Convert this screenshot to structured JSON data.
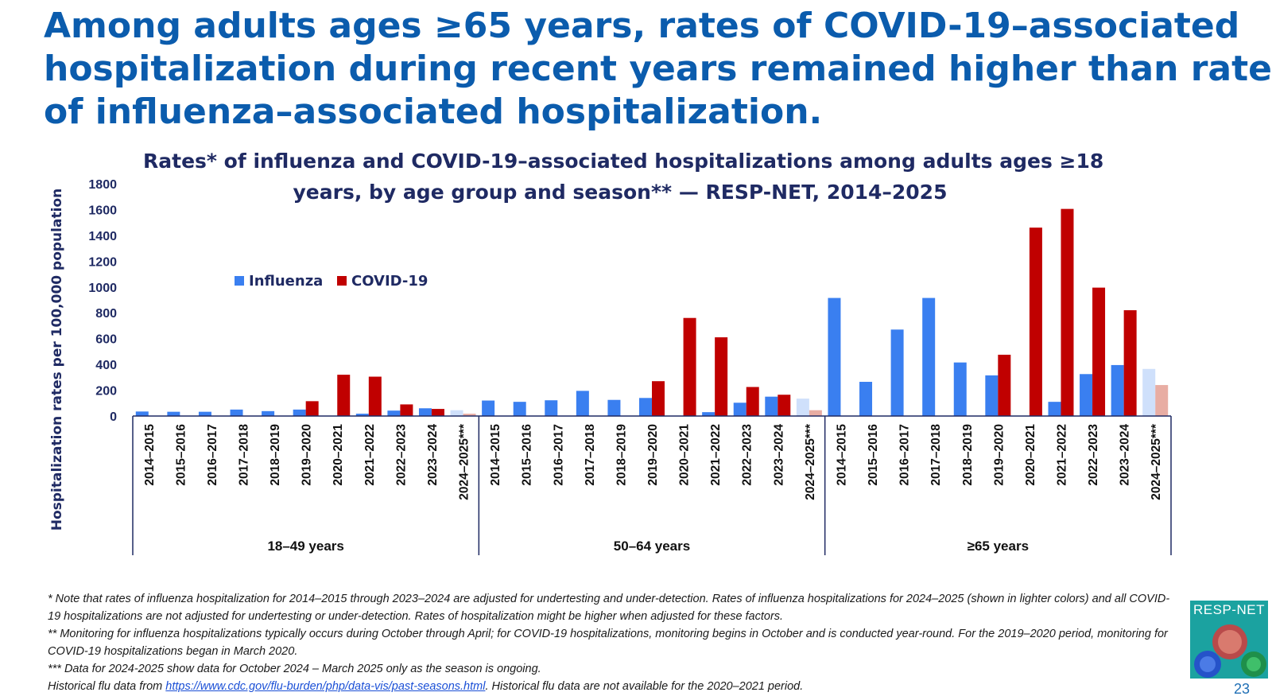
{
  "slide": {
    "title_lines": [
      "Among adults ages ≥65 years, rates of COVID-19–associated",
      "hospitalization during recent years remained higher than rates",
      "of influenza–associated hospitalization."
    ],
    "page_number": "23",
    "logo_text": "RESP-NET"
  },
  "chart_data": {
    "type": "bar",
    "title_lines": [
      "Rates* of influenza and COVID-19–associated hospitalizations among adults ages ≥18",
      "years, by age group and season** — RESP-NET, 2014–2025"
    ],
    "ylabel": "Hospitalization rates per 100,000 population",
    "xlabel": "",
    "ylim": [
      0,
      1800
    ],
    "yticks": [
      0,
      200,
      400,
      600,
      800,
      1000,
      1200,
      1400,
      1600,
      1800
    ],
    "legend_position": "top-left",
    "seasons": [
      "2014–2015",
      "2015–2016",
      "2016–2017",
      "2017–2018",
      "2018–2019",
      "2019–2020",
      "2020–2021",
      "2021–2022",
      "2022–2023",
      "2023–2024",
      "2024–2025***"
    ],
    "groups": [
      {
        "name": "18–49 years",
        "influenza": [
          35,
          33,
          33,
          50,
          38,
          50,
          null,
          18,
          42,
          60,
          45
        ],
        "covid": [
          null,
          null,
          null,
          null,
          null,
          115,
          320,
          305,
          90,
          55,
          18
        ]
      },
      {
        "name": "50–64 years",
        "influenza": [
          120,
          110,
          122,
          195,
          125,
          140,
          null,
          30,
          103,
          150,
          135
        ],
        "covid": [
          null,
          null,
          null,
          null,
          null,
          270,
          760,
          610,
          225,
          165,
          45
        ]
      },
      {
        "name": "≥65 years",
        "influenza": [
          915,
          265,
          670,
          915,
          415,
          315,
          null,
          110,
          325,
          395,
          365
        ],
        "covid": [
          null,
          null,
          null,
          null,
          null,
          475,
          1460,
          1605,
          995,
          820,
          240
        ]
      }
    ],
    "series": [
      {
        "name": "Influenza",
        "color": "#3a7ff0",
        "light_color": "#cfe0fb"
      },
      {
        "name": "COVID-19",
        "color": "#c00000",
        "light_color": "#e8ada3"
      }
    ],
    "note": "Last season in each group is drawn in lighter colors"
  },
  "footnotes": {
    "note1": "* Note that rates of influenza hospitalization for 2014–2015 through 2023–2024 are adjusted for undertesting and under-detection. Rates of influenza hospitalizations for 2024–2025 (shown in lighter colors) and all COVID-19 hospitalizations are not adjusted for undertesting or under-detection. Rates of hospitalization might be higher when adjusted for these factors.",
    "note2": "** Monitoring for influenza hospitalizations typically occurs during October through April; for COVID-19 hospitalizations, monitoring begins in October and is conducted year-round. For the 2019–2020 period, monitoring for COVID-19 hospitalizations began in March 2020.",
    "note3": "*** Data for 2024-2025 show data for October 2024 – March 2025 only as the season is ongoing.",
    "note4_prefix": "Historical flu data from ",
    "note4_link": "https://www.cdc.gov/flu-burden/php/data-vis/past-seasons.html",
    "note4_suffix": ". Historical flu data are not available for the 2020–2021 period."
  }
}
